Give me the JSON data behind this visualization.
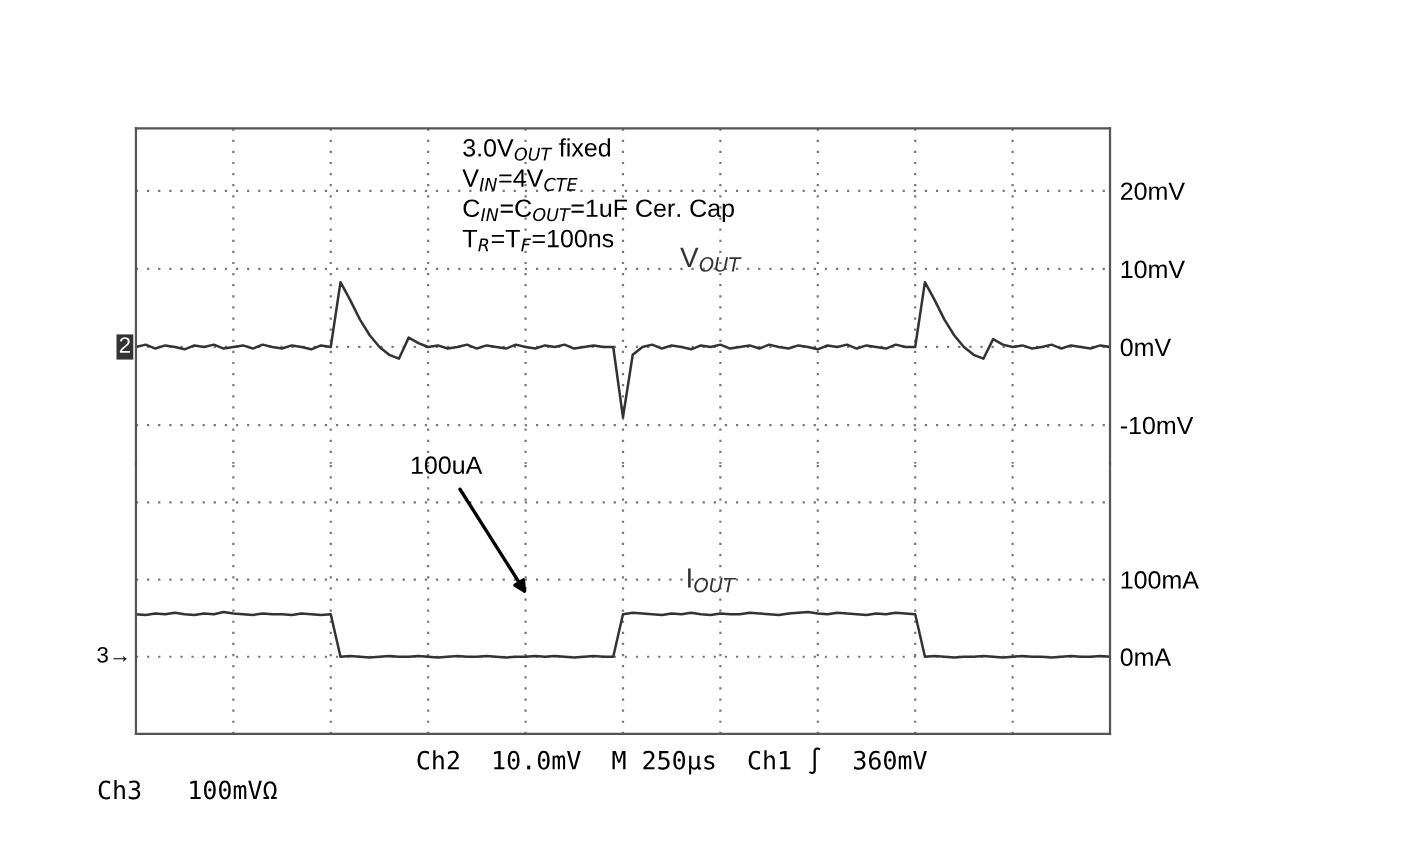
{
  "chart_data": [
    {
      "type": "line",
      "categories": [
        null,
        null,
        null,
        null,
        null,
        null,
        null,
        null,
        null,
        null,
        null,
        null,
        null,
        null,
        null,
        null,
        null,
        null,
        null,
        null,
        null,
        null,
        null,
        null,
        null,
        null,
        null,
        null,
        null,
        null,
        null,
        null,
        null,
        null,
        null,
        null,
        null,
        null,
        null,
        null,
        null,
        null,
        null,
        null,
        null,
        null,
        null,
        null,
        null,
        null,
        null,
        null,
        null,
        null,
        null,
        null,
        null,
        null,
        null,
        null,
        null,
        null,
        null,
        null,
        null,
        null,
        null,
        null,
        null,
        null,
        null,
        null,
        null,
        null,
        null,
        null,
        null,
        null,
        null,
        null,
        null,
        null,
        null,
        null,
        null,
        null,
        null,
        null,
        null,
        null,
        null,
        null,
        null,
        null,
        null,
        null,
        null,
        null,
        null,
        null,
        null
      ],
      "series": [
        {
          "name": "V$_{OUT}$",
          "color": "#333333",
          "values": [
            0,
            0.3,
            -0.2,
            0.2,
            0,
            -0.3,
            0.2,
            0,
            0.3,
            -0.2,
            0,
            0.2,
            -0.2,
            0.3,
            0,
            -0.2,
            0.2,
            0,
            -0.3,
            0.2,
            0,
            8.3,
            6,
            3.5,
            1.5,
            0,
            -1,
            -1.5,
            1.2,
            0.5,
            0,
            0.2,
            -0.2,
            0,
            0.3,
            -0.2,
            0.2,
            0,
            -0.2,
            0.3,
            0,
            -0.2,
            0.2,
            0,
            0.3,
            -0.2,
            0,
            0.2,
            0,
            0,
            -9,
            -1,
            0,
            0.3,
            -0.2,
            0.2,
            0,
            -0.3,
            0.2,
            0,
            0.3,
            -0.2,
            0,
            0.2,
            -0.2,
            0.3,
            0,
            -0.2,
            0.2,
            0,
            -0.3,
            0.2,
            0,
            0.3,
            -0.2,
            0.2,
            0,
            -0.2,
            0.3,
            0,
            0,
            8.3,
            6,
            3.5,
            1.5,
            0,
            -1,
            -1.5,
            1,
            0.3,
            0,
            0.2,
            -0.2,
            0,
            0.3,
            -0.2,
            0.2,
            0,
            -0.2,
            0.2,
            0
          ]
        }
      ],
      "ylim": [
        -15,
        28
      ],
      "yticks": [
        {
          "value": -10,
          "label": "-10mV"
        },
        {
          "value": 0,
          "label": "0mV"
        },
        {
          "value": 10,
          "label": "10mV"
        },
        {
          "value": 20,
          "label": "20mV"
        }
      ],
      "tick_labels": "y",
      "grid": true,
      "line_style": "solid",
      "annotations": [
        "3.0V$_{OUT}$ fixed",
        "V$_{IN}$=4V$_{CTE}$",
        "C$_{IN}$=C$_{OUT}$=1uF Cer. Cap",
        "T$_{R}$=T$_{F}$=100ns",
        "2"
      ]
    },
    {
      "type": "line",
      "categories": [
        null,
        null,
        null,
        null,
        null,
        null,
        null,
        null,
        null,
        null,
        null,
        null,
        null,
        null,
        null,
        null,
        null,
        null,
        null,
        null,
        null,
        null,
        null,
        null,
        null,
        null,
        null,
        null,
        null,
        null,
        null,
        null,
        null,
        null,
        null,
        null,
        null,
        null,
        null,
        null,
        null,
        null,
        null,
        null,
        null,
        null,
        null,
        null,
        null,
        null,
        null,
        null,
        null,
        null,
        null,
        null,
        null,
        null,
        null,
        null,
        null,
        null,
        null,
        null,
        null,
        null,
        null,
        null,
        null,
        null,
        null,
        null,
        null,
        null,
        null,
        null,
        null,
        null,
        null,
        null,
        null,
        null,
        null,
        null,
        null,
        null,
        null,
        null,
        null,
        null,
        null,
        null,
        null,
        null,
        null,
        null,
        null,
        null,
        null,
        null,
        null
      ],
      "series": [
        {
          "name": "I$_{OUT}$",
          "color": "#333333",
          "values": [
            55,
            54,
            56,
            55,
            57,
            55,
            54,
            56,
            55,
            58,
            56,
            55,
            54,
            56,
            55,
            55,
            54,
            56,
            55,
            54,
            55,
            0,
            1,
            0,
            -1,
            0,
            1,
            0,
            0,
            1,
            0,
            -1,
            0,
            1,
            0,
            0,
            1,
            0,
            -1,
            0,
            0,
            1,
            0,
            1,
            0,
            -1,
            0,
            1,
            0,
            0,
            55,
            57,
            56,
            55,
            54,
            56,
            55,
            57,
            55,
            54,
            56,
            55,
            55,
            57,
            56,
            55,
            54,
            56,
            57,
            58,
            56,
            55,
            57,
            56,
            55,
            54,
            56,
            55,
            57,
            56,
            55,
            0,
            1,
            0,
            -1,
            0,
            0,
            1,
            0,
            -1,
            0,
            1,
            0,
            0,
            -1,
            0,
            1,
            0,
            0,
            1,
            0
          ]
        }
      ],
      "ylim": [
        -100,
        250
      ],
      "yticks": [
        {
          "value": 0,
          "label": "0mA"
        },
        {
          "value": 100,
          "label": "100mA"
        },
        {
          "value": 200,
          "label": null
        }
      ],
      "tick_labels": "y",
      "grid": true,
      "line_style": "solid",
      "annotations": [
        "100uA",
        "3→",
        "Ch2  10.0mV  M 250µs  Ch1 ∫  360mV",
        "Ch3   100mVΩ"
      ]
    }
  ]
}
